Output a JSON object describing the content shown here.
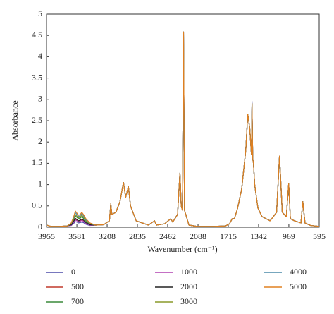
{
  "chart_data": {
    "type": "line",
    "xlabel": "Wavenumber (cm⁻¹)",
    "ylabel": "Absorbance",
    "xlim": [
      3955,
      595
    ],
    "xticks": [
      3955,
      3581,
      3208,
      2835,
      2462,
      2088,
      1715,
      1342,
      969,
      595
    ],
    "ylim": [
      0,
      5
    ],
    "yticks": [
      0,
      0.5,
      1,
      1.5,
      2,
      2.5,
      3,
      3.5,
      4,
      4.5,
      5
    ],
    "x": [
      3955,
      3900,
      3800,
      3700,
      3650,
      3620,
      3600,
      3580,
      3560,
      3540,
      3520,
      3500,
      3470,
      3420,
      3350,
      3250,
      3180,
      3163,
      3150,
      3100,
      3050,
      3007,
      2980,
      2946,
      2920,
      2850,
      2700,
      2624,
      2600,
      2500,
      2424,
      2400,
      2340,
      2311,
      2295,
      2280,
      2267,
      2255,
      2200,
      2100,
      1900,
      1750,
      1700,
      1667,
      1640,
      1600,
      1550,
      1500,
      1475,
      1450,
      1430,
      1423,
      1414,
      1405,
      1390,
      1350,
      1300,
      1200,
      1120,
      1084,
      1050,
      1000,
      971,
      950,
      900,
      820,
      797,
      770,
      700,
      595
    ],
    "series": [
      {
        "name": "0",
        "color": "#4b4ba8",
        "values": [
          0.05,
          0.02,
          0.02,
          0.03,
          0.04,
          0.09,
          0.13,
          0.12,
          0.1,
          0.11,
          0.12,
          0.11,
          0.07,
          0.04,
          0.05,
          0.06,
          0.15,
          0.55,
          0.3,
          0.35,
          0.6,
          1.05,
          0.7,
          0.95,
          0.5,
          0.15,
          0.05,
          0.15,
          0.05,
          0.08,
          0.2,
          0.12,
          0.3,
          1.27,
          0.5,
          0.4,
          4.58,
          0.4,
          0.05,
          0.02,
          0.02,
          0.03,
          0.08,
          0.2,
          0.2,
          0.45,
          0.9,
          1.8,
          2.65,
          2.3,
          1.7,
          2.95,
          1.6,
          1.5,
          1.0,
          0.45,
          0.25,
          0.15,
          0.35,
          1.67,
          0.35,
          0.25,
          1.02,
          0.2,
          0.15,
          0.1,
          0.6,
          0.1,
          0.04,
          0.02
        ]
      },
      {
        "name": "500",
        "color": "#c0392b",
        "values": [
          0.05,
          0.02,
          0.02,
          0.03,
          0.05,
          0.13,
          0.19,
          0.17,
          0.14,
          0.15,
          0.18,
          0.15,
          0.1,
          0.05,
          0.05,
          0.06,
          0.15,
          0.55,
          0.3,
          0.35,
          0.6,
          1.05,
          0.7,
          0.95,
          0.5,
          0.15,
          0.05,
          0.15,
          0.05,
          0.08,
          0.2,
          0.12,
          0.3,
          1.27,
          0.5,
          0.4,
          4.58,
          0.4,
          0.05,
          0.02,
          0.02,
          0.03,
          0.08,
          0.2,
          0.2,
          0.45,
          0.9,
          1.8,
          2.65,
          2.3,
          1.7,
          2.9,
          1.6,
          1.5,
          1.0,
          0.45,
          0.25,
          0.15,
          0.35,
          1.67,
          0.35,
          0.25,
          1.02,
          0.2,
          0.15,
          0.1,
          0.6,
          0.1,
          0.04,
          0.02
        ]
      },
      {
        "name": "700",
        "color": "#3a8a3a",
        "values": [
          0.05,
          0.02,
          0.02,
          0.03,
          0.07,
          0.18,
          0.27,
          0.23,
          0.2,
          0.21,
          0.25,
          0.21,
          0.14,
          0.07,
          0.05,
          0.06,
          0.15,
          0.55,
          0.3,
          0.35,
          0.6,
          1.05,
          0.7,
          0.95,
          0.5,
          0.15,
          0.05,
          0.15,
          0.05,
          0.08,
          0.2,
          0.12,
          0.3,
          1.27,
          0.5,
          0.4,
          4.58,
          0.4,
          0.05,
          0.02,
          0.02,
          0.03,
          0.08,
          0.2,
          0.2,
          0.45,
          0.9,
          1.8,
          2.65,
          2.3,
          1.7,
          2.9,
          1.6,
          1.5,
          1.0,
          0.45,
          0.25,
          0.15,
          0.35,
          1.67,
          0.35,
          0.25,
          1.02,
          0.2,
          0.15,
          0.1,
          0.6,
          0.1,
          0.04,
          0.02
        ]
      },
      {
        "name": "1000",
        "color": "#b040b0",
        "values": [
          0.05,
          0.02,
          0.02,
          0.03,
          0.05,
          0.11,
          0.17,
          0.15,
          0.13,
          0.14,
          0.16,
          0.14,
          0.09,
          0.05,
          0.05,
          0.06,
          0.15,
          0.55,
          0.3,
          0.35,
          0.6,
          1.05,
          0.7,
          0.95,
          0.5,
          0.15,
          0.05,
          0.15,
          0.05,
          0.08,
          0.2,
          0.12,
          0.3,
          1.27,
          0.5,
          0.4,
          4.58,
          0.4,
          0.05,
          0.02,
          0.02,
          0.03,
          0.08,
          0.2,
          0.2,
          0.45,
          0.9,
          1.8,
          2.65,
          2.3,
          1.7,
          2.9,
          1.6,
          1.5,
          1.0,
          0.45,
          0.25,
          0.15,
          0.35,
          1.67,
          0.35,
          0.25,
          1.02,
          0.2,
          0.15,
          0.1,
          0.6,
          0.1,
          0.04,
          0.02
        ]
      },
      {
        "name": "2000",
        "color": "#222222",
        "values": [
          0.05,
          0.02,
          0.02,
          0.03,
          0.06,
          0.14,
          0.21,
          0.18,
          0.15,
          0.17,
          0.19,
          0.17,
          0.11,
          0.06,
          0.05,
          0.06,
          0.15,
          0.55,
          0.3,
          0.35,
          0.6,
          1.05,
          0.7,
          0.95,
          0.5,
          0.15,
          0.05,
          0.15,
          0.05,
          0.08,
          0.2,
          0.12,
          0.3,
          1.27,
          0.5,
          0.4,
          4.58,
          0.4,
          0.05,
          0.02,
          0.02,
          0.03,
          0.08,
          0.2,
          0.2,
          0.45,
          0.9,
          1.8,
          2.65,
          2.3,
          1.7,
          2.9,
          1.6,
          1.5,
          1.0,
          0.45,
          0.25,
          0.15,
          0.35,
          1.67,
          0.35,
          0.25,
          1.02,
          0.2,
          0.15,
          0.1,
          0.6,
          0.1,
          0.04,
          0.02
        ]
      },
      {
        "name": "3000",
        "color": "#8a9a2a",
        "values": [
          0.05,
          0.02,
          0.02,
          0.03,
          0.08,
          0.2,
          0.3,
          0.26,
          0.22,
          0.24,
          0.28,
          0.24,
          0.16,
          0.08,
          0.05,
          0.06,
          0.15,
          0.55,
          0.3,
          0.35,
          0.6,
          1.05,
          0.7,
          0.95,
          0.5,
          0.15,
          0.05,
          0.15,
          0.05,
          0.08,
          0.2,
          0.12,
          0.3,
          1.27,
          0.5,
          0.4,
          4.58,
          0.4,
          0.05,
          0.02,
          0.02,
          0.03,
          0.08,
          0.2,
          0.2,
          0.45,
          0.9,
          1.8,
          2.65,
          2.3,
          1.7,
          2.9,
          1.6,
          1.5,
          1.0,
          0.45,
          0.25,
          0.15,
          0.35,
          1.67,
          0.35,
          0.25,
          1.02,
          0.2,
          0.15,
          0.1,
          0.6,
          0.1,
          0.04,
          0.02
        ]
      },
      {
        "name": "4000",
        "color": "#4a8aa8",
        "values": [
          0.05,
          0.02,
          0.02,
          0.03,
          0.09,
          0.23,
          0.34,
          0.3,
          0.25,
          0.27,
          0.32,
          0.27,
          0.18,
          0.09,
          0.05,
          0.06,
          0.15,
          0.55,
          0.3,
          0.35,
          0.6,
          1.05,
          0.7,
          0.95,
          0.5,
          0.15,
          0.05,
          0.15,
          0.05,
          0.08,
          0.2,
          0.12,
          0.3,
          1.27,
          0.5,
          0.4,
          4.58,
          0.4,
          0.05,
          0.02,
          0.02,
          0.03,
          0.08,
          0.2,
          0.2,
          0.45,
          0.9,
          1.8,
          2.65,
          2.3,
          1.7,
          2.9,
          1.6,
          1.5,
          1.0,
          0.45,
          0.25,
          0.15,
          0.35,
          1.67,
          0.35,
          0.25,
          1.02,
          0.2,
          0.15,
          0.1,
          0.6,
          0.1,
          0.04,
          0.02
        ]
      },
      {
        "name": "5000",
        "color": "#e08020",
        "values": [
          0.05,
          0.02,
          0.02,
          0.03,
          0.1,
          0.25,
          0.38,
          0.33,
          0.28,
          0.3,
          0.35,
          0.3,
          0.2,
          0.1,
          0.05,
          0.06,
          0.15,
          0.55,
          0.3,
          0.35,
          0.6,
          1.05,
          0.7,
          0.95,
          0.5,
          0.15,
          0.05,
          0.15,
          0.05,
          0.08,
          0.2,
          0.12,
          0.3,
          1.27,
          0.5,
          0.4,
          4.58,
          0.4,
          0.05,
          0.02,
          0.02,
          0.03,
          0.08,
          0.2,
          0.2,
          0.45,
          0.9,
          1.8,
          2.65,
          2.3,
          1.7,
          2.9,
          1.6,
          1.5,
          1.0,
          0.45,
          0.25,
          0.15,
          0.35,
          1.67,
          0.35,
          0.25,
          1.02,
          0.2,
          0.15,
          0.1,
          0.6,
          0.1,
          0.04,
          0.02
        ]
      }
    ]
  }
}
